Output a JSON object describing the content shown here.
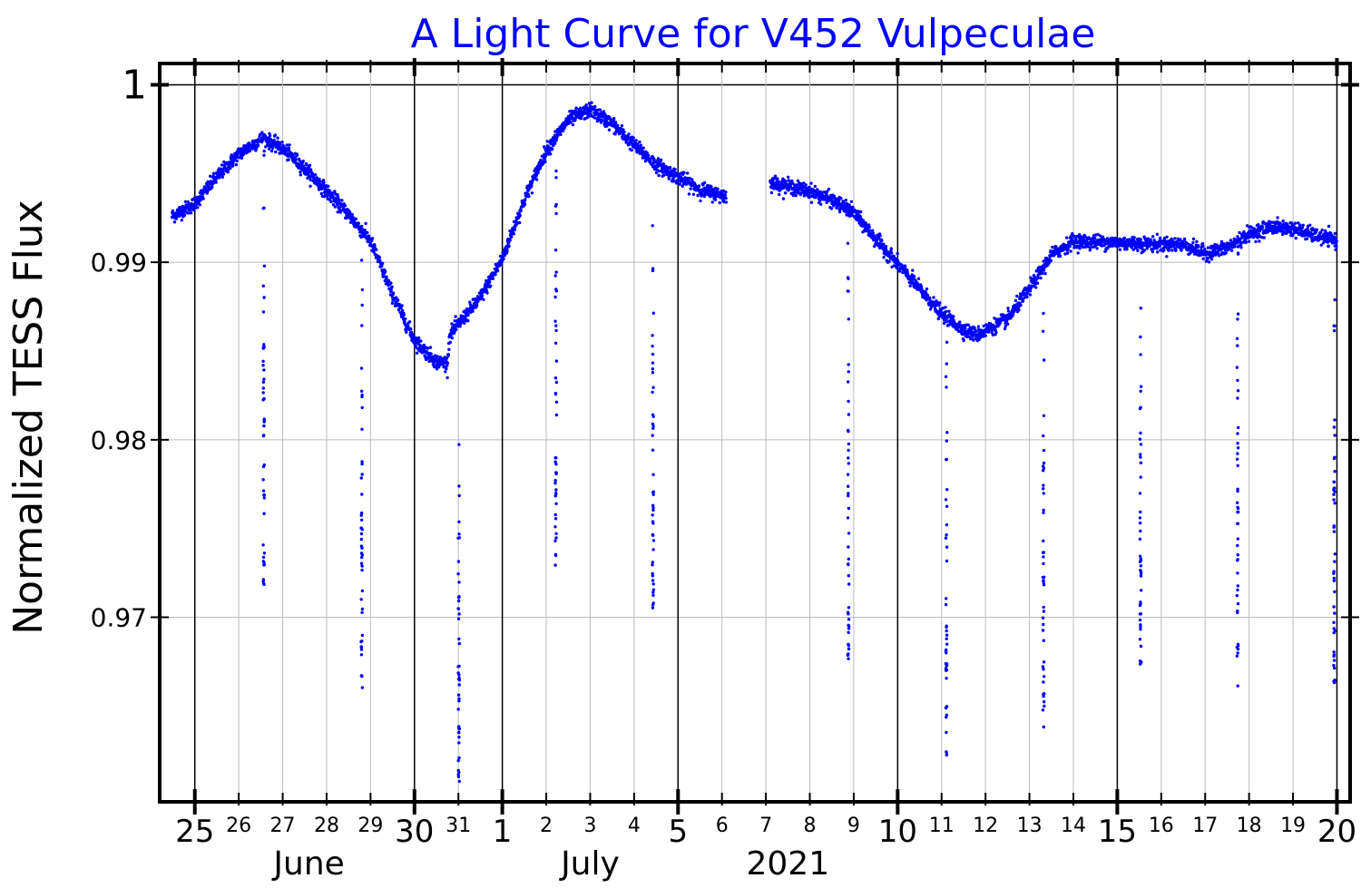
{
  "chart_data": {
    "type": "scatter",
    "title": "A Light Curve for V452 Vulpeculae",
    "ylabel": "Normalized TESS Flux",
    "xlabel_months": [
      {
        "label": "June",
        "day_index": 2.6
      },
      {
        "label": "July",
        "day_index": 9.0
      },
      {
        "label": "2021",
        "day_index": 13.5
      }
    ],
    "x_day_index_range": [
      -0.8,
      26.3
    ],
    "ylim": [
      0.9596,
      1.0012
    ],
    "y_ticks": [
      {
        "value": 1.0,
        "label": "1",
        "major": true
      },
      {
        "value": 0.99,
        "label": "0.99",
        "major": false
      },
      {
        "value": 0.98,
        "label": "0.98",
        "major": false
      },
      {
        "value": 0.97,
        "label": "0.97",
        "major": false
      }
    ],
    "x_ticks": [
      {
        "i": 0,
        "label": "25",
        "major": true
      },
      {
        "i": 1,
        "label": "26",
        "major": false
      },
      {
        "i": 2,
        "label": "27",
        "major": false
      },
      {
        "i": 3,
        "label": "28",
        "major": false
      },
      {
        "i": 4,
        "label": "29",
        "major": false
      },
      {
        "i": 5,
        "label": "30",
        "major": true
      },
      {
        "i": 6,
        "label": "31",
        "major": false
      },
      {
        "i": 7,
        "label": "1",
        "major": true
      },
      {
        "i": 8,
        "label": "2",
        "major": false
      },
      {
        "i": 9,
        "label": "3",
        "major": false
      },
      {
        "i": 10,
        "label": "4",
        "major": false
      },
      {
        "i": 11,
        "label": "5",
        "major": true
      },
      {
        "i": 12,
        "label": "6",
        "major": false
      },
      {
        "i": 13,
        "label": "7",
        "major": false
      },
      {
        "i": 14,
        "label": "8",
        "major": false
      },
      {
        "i": 15,
        "label": "9",
        "major": false
      },
      {
        "i": 16,
        "label": "10",
        "major": true
      },
      {
        "i": 17,
        "label": "11",
        "major": false
      },
      {
        "i": 18,
        "label": "12",
        "major": false
      },
      {
        "i": 19,
        "label": "13",
        "major": false
      },
      {
        "i": 20,
        "label": "14",
        "major": false
      },
      {
        "i": 21,
        "label": "15",
        "major": true
      },
      {
        "i": 22,
        "label": "16",
        "major": false
      },
      {
        "i": 23,
        "label": "17",
        "major": false
      },
      {
        "i": 24,
        "label": "18",
        "major": false
      },
      {
        "i": 25,
        "label": "19",
        "major": false
      },
      {
        "i": 26,
        "label": "20",
        "major": true
      }
    ],
    "grid": true,
    "series_color": "#0000ff",
    "title_color": "#0000ff",
    "baseline_segments": [
      [
        [
          -0.52,
          0.9926
        ],
        [
          0,
          0.9933
        ],
        [
          0.5,
          0.9948
        ],
        [
          1,
          0.9961
        ],
        [
          1.55,
          0.997
        ],
        [
          2,
          0.9964
        ],
        [
          2.5,
          0.9953
        ],
        [
          3,
          0.994
        ],
        [
          3.5,
          0.9927
        ],
        [
          4,
          0.9912
        ],
        [
          4.5,
          0.9882
        ],
        [
          5,
          0.9856
        ],
        [
          5.5,
          0.9844
        ],
        [
          5.75,
          0.9843
        ],
        [
          5.8,
          0.9859
        ],
        [
          6,
          0.9865
        ],
        [
          6.5,
          0.988
        ],
        [
          7,
          0.9902
        ],
        [
          7.5,
          0.9935
        ],
        [
          8,
          0.9963
        ],
        [
          8.5,
          0.998
        ],
        [
          9,
          0.9986
        ],
        [
          9.5,
          0.9978
        ],
        [
          10,
          0.9966
        ],
        [
          10.5,
          0.9955
        ],
        [
          11,
          0.9948
        ],
        [
          11.5,
          0.9941
        ],
        [
          12.1,
          0.9937
        ]
      ],
      [
        [
          13.1,
          0.9945
        ],
        [
          14,
          0.994
        ],
        [
          14.5,
          0.9935
        ],
        [
          15,
          0.9928
        ],
        [
          15.5,
          0.9913
        ],
        [
          16,
          0.9899
        ],
        [
          16.5,
          0.9885
        ],
        [
          17,
          0.9871
        ],
        [
          17.5,
          0.9862
        ],
        [
          17.8,
          0.9859
        ],
        [
          18.5,
          0.9868
        ],
        [
          19,
          0.9885
        ],
        [
          19.5,
          0.9904
        ],
        [
          20,
          0.9912
        ],
        [
          21,
          0.9911
        ],
        [
          22,
          0.991
        ],
        [
          22.5,
          0.991
        ],
        [
          23,
          0.9905
        ],
        [
          23.5,
          0.9908
        ],
        [
          24,
          0.9916
        ],
        [
          24.5,
          0.992
        ],
        [
          25,
          0.9919
        ],
        [
          25.5,
          0.9915
        ],
        [
          26,
          0.9912
        ]
      ]
    ],
    "eclipses": [
      {
        "t": 1.57,
        "min_flux": 0.9718
      },
      {
        "t": 3.8,
        "min_flux": 0.9655
      },
      {
        "t": 6.01,
        "min_flux": 0.9608
      },
      {
        "t": 8.22,
        "min_flux": 0.9729
      },
      {
        "t": 10.43,
        "min_flux": 0.9703
      },
      {
        "t": 14.88,
        "min_flux": 0.9675
      },
      {
        "t": 17.11,
        "min_flux": 0.9614
      },
      {
        "t": 19.32,
        "min_flux": 0.9638
      },
      {
        "t": 21.53,
        "min_flux": 0.9662
      },
      {
        "t": 23.74,
        "min_flux": 0.9659
      },
      {
        "t": 25.94,
        "min_flux": 0.9662
      }
    ],
    "scatter_noise": 0.0002
  }
}
